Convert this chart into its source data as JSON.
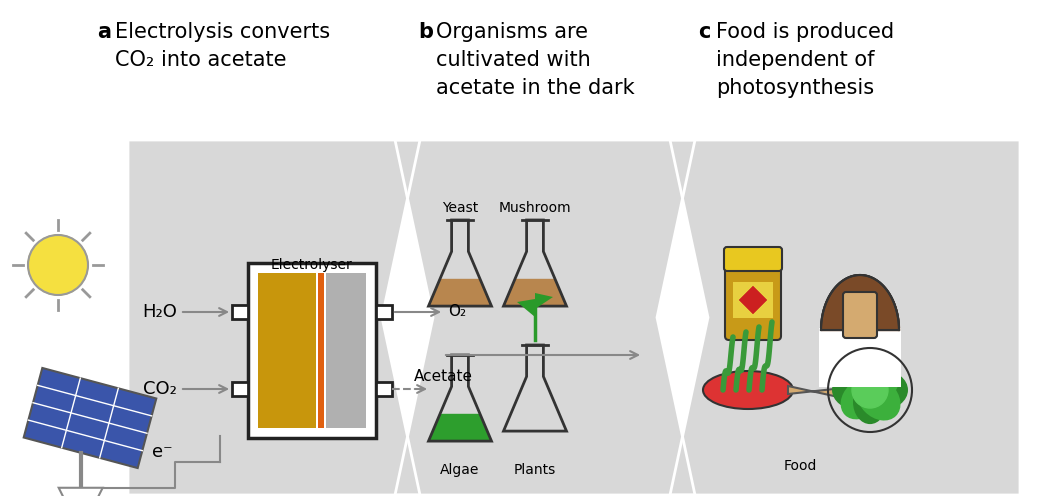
{
  "bg_color": "#ffffff",
  "zigzag_color": "#d8d8d8",
  "text_color": "#000000",
  "label_a": "a",
  "label_b": "b",
  "label_c": "c",
  "title_a_line1": "Electrolysis converts",
  "title_a_line2": "CO₂ into acetate",
  "title_b_line1": "Organisms are",
  "title_b_line2": "cultivated with",
  "title_b_line3": "acetate in the dark",
  "title_c_line1": "Food is produced",
  "title_c_line2": "independent of",
  "title_c_line3": "photosynthesis",
  "sun_fill": "#f5e040",
  "sun_outline": "#999999",
  "solar_blue": "#3a55aa",
  "solar_frame": "#888888",
  "electrode_gold": "#c8960c",
  "electrode_orange": "#e06010",
  "electrode_gray": "#b0b0b0",
  "electrolyser_border": "#222222",
  "arrow_color": "#888888",
  "flask_brown": "#b8864e",
  "flask_green": "#2d9e2d",
  "flask_outline": "#333333",
  "jar_body": "#c89a18",
  "jar_lid": "#e8c820",
  "jar_label_red": "#cc2020",
  "mushroom_cap": "#7a4a28",
  "mushroom_stem": "#d4aa70",
  "pan_red": "#dd3333",
  "pan_handle": "#d4aa70",
  "veggie_green": "#3a9a3a",
  "lettuce_dark": "#2a8a2a",
  "lettuce_mid": "#3cb03c",
  "lettuce_light": "#5acc5a",
  "plant_green": "#2a9a2a",
  "h2o_label": "H₂O",
  "co2_label": "CO₂",
  "o2_label": "O₂",
  "acetate_label": "Acetate",
  "electrolyser_label": "Electrolyser",
  "e_label": "e⁻",
  "yeast_label": "Yeast",
  "mushroom_label": "Mushroom",
  "algae_label": "Algae",
  "plants_label": "Plants",
  "food_label": "Food"
}
